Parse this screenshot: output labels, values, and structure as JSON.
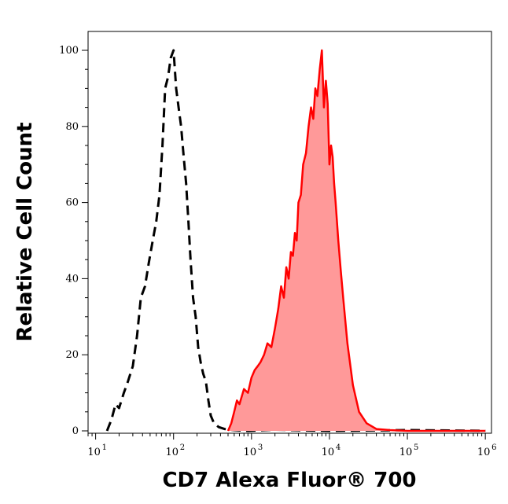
{
  "chart_data": {
    "type": "area",
    "title": "",
    "xlabel": "CD7 Alexa Fluor® 700",
    "ylabel": "Relative Cell Count",
    "x_scale": "log",
    "xlim": [
      8,
      1200000
    ],
    "ylim": [
      0,
      105
    ],
    "grid": false,
    "x_ticks": [
      {
        "base": "10",
        "exp": "1",
        "value": 10
      },
      {
        "base": "10",
        "exp": "2",
        "value": 100
      },
      {
        "base": "10",
        "exp": "3",
        "value": 1000
      },
      {
        "base": "10",
        "exp": "4",
        "value": 10000
      },
      {
        "base": "10",
        "exp": "5",
        "value": 100000
      },
      {
        "base": "10",
        "exp": "6",
        "value": 1000000
      }
    ],
    "y_ticks": [
      "0",
      "20",
      "40",
      "60",
      "80",
      "100"
    ],
    "series": [
      {
        "style": "dashed-outline",
        "color": "#000000",
        "x": [
          14,
          16,
          18,
          20,
          23,
          26,
          30,
          34,
          38,
          43,
          48,
          54,
          60,
          66,
          72,
          78,
          85,
          92,
          100,
          108,
          116,
          125,
          135,
          145,
          155,
          165,
          178,
          192,
          207,
          223,
          240,
          260,
          280,
          300,
          330,
          380,
          450,
          600,
          900,
          2000,
          10000,
          100000,
          1000000
        ],
        "y": [
          0,
          3,
          7,
          6,
          10,
          13,
          17,
          25,
          35,
          38,
          44,
          50,
          55,
          62,
          75,
          90,
          93,
          98,
          100,
          90,
          85,
          80,
          72,
          65,
          55,
          45,
          35,
          30,
          22,
          18,
          15,
          13,
          8,
          4,
          2,
          1,
          0.5,
          0.2,
          0,
          0.3,
          0,
          0.2,
          0
        ]
      },
      {
        "style": "filled",
        "color": "#ff0000",
        "fill": "#ff9999",
        "x": [
          500,
          550,
          600,
          650,
          700,
          800,
          900,
          1000,
          1100,
          1200,
          1300,
          1450,
          1600,
          1800,
          2000,
          2200,
          2400,
          2600,
          2800,
          3000,
          3200,
          3400,
          3600,
          3800,
          4000,
          4300,
          4600,
          5000,
          5400,
          5800,
          6200,
          6600,
          7000,
          7500,
          8000,
          8500,
          9000,
          9500,
          10000,
          10500,
          11000,
          11500,
          12000,
          13000,
          14000,
          15000,
          17000,
          20000,
          24000,
          30000,
          40000,
          60000,
          100000,
          1000000
        ],
        "y": [
          0,
          2,
          5,
          8,
          7,
          11,
          10,
          14,
          16,
          17,
          18,
          20,
          23,
          22,
          27,
          32,
          38,
          35,
          43,
          40,
          47,
          46,
          52,
          50,
          60,
          62,
          70,
          73,
          80,
          85,
          82,
          90,
          88,
          95,
          100,
          85,
          92,
          86,
          70,
          75,
          72,
          65,
          60,
          50,
          42,
          35,
          23,
          12,
          5,
          2,
          0.5,
          0.2,
          0,
          0
        ]
      }
    ]
  }
}
